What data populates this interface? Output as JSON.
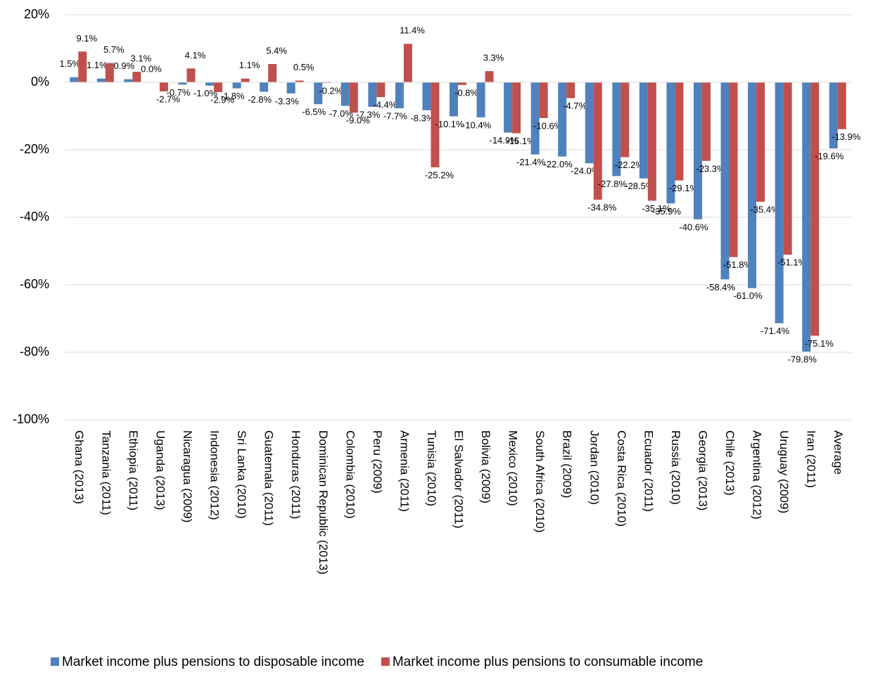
{
  "chart_data": {
    "type": "bar",
    "categories": [
      "Ghana (2013)",
      "Tanzania (2011)",
      "Ethiopia (2011)",
      "Uganda (2013)",
      "Nicaragua (2009)",
      "Indonesia (2012)",
      "Sri Lanka (2010)",
      "Guatemala (2011)",
      "Honduras (2011)",
      "Dominican Republic (2013)",
      "Colombia (2010)",
      "Peru (2009)",
      "Armenia (2011)",
      "Tunisia (2010)",
      "El Salvador (2011)",
      "Bolivia (2009)",
      "Mexico (2010)",
      "South Africa (2010)",
      "Brazil (2009)",
      "Jordan (2010)",
      "Costa Rica (2010)",
      "Ecuador (2011)",
      "Russia (2010)",
      "Georgia (2013)",
      "Chile (2013)",
      "Argentina (2012)",
      "Uruguay (2009)",
      "Iran (2011)",
      "Average"
    ],
    "series": [
      {
        "name": "Market income plus pensions to disposable income",
        "color": "#4f81bd",
        "values": [
          1.5,
          1.1,
          0.9,
          0.0,
          -0.7,
          -1.0,
          -1.8,
          -2.8,
          -3.3,
          -6.5,
          -7.0,
          -7.3,
          -7.7,
          -8.3,
          -10.1,
          -10.4,
          -14.9,
          -21.4,
          -22.0,
          -24.0,
          -27.8,
          -28.5,
          -35.9,
          -40.6,
          -58.4,
          -61.0,
          -71.4,
          -79.8,
          -19.6
        ],
        "value_labels": [
          "1.5%",
          "1.1%",
          "0.9%",
          "0.0%",
          "-0.7%",
          "-1.0%",
          "-1.8%",
          "-2.8%",
          "-3.3%",
          "-6.5%",
          "-7.0%",
          "-7.3%",
          "-7.7%",
          "-8.3%",
          "-10.1%",
          "-10.4%",
          "-14.9%",
          "-21.4%",
          "-22.0%",
          "-24.0%",
          "-27.8%",
          "-28.5%",
          "-35.9%",
          "-40.6%",
          "-58.4%",
          "-61.0%",
          "-71.4%",
          "-79.8%",
          "-19.6%"
        ]
      },
      {
        "name": "Market income plus pensions to consumable income",
        "color": "#c0504d",
        "values": [
          9.1,
          5.7,
          3.1,
          -2.7,
          4.1,
          -2.9,
          1.1,
          5.4,
          0.5,
          -0.2,
          -9.0,
          -4.4,
          11.4,
          -25.2,
          -0.8,
          3.3,
          -15.1,
          -10.6,
          -4.7,
          -34.8,
          -22.2,
          -35.1,
          -29.1,
          -23.3,
          -51.8,
          -35.4,
          -51.1,
          -75.1,
          -13.9
        ],
        "value_labels": [
          "9.1%",
          "5.7%",
          "3.1%",
          "-2.7%",
          "4.1%",
          "-2.9%",
          "1.1%",
          "5.4%",
          "0.5%",
          "-0.2%",
          "-9.0%",
          "-4.4%",
          "11.4%",
          "-25.2%",
          "-0.8%",
          "3.3%",
          "-15.1%",
          "-10.6%",
          "-4.7%",
          "-34.8%",
          "-22.2%",
          "-35.1%",
          "-29.1%",
          "-23.3%",
          "-51.8%",
          "-35.4%",
          "-51.1%",
          "-75.1%",
          "-13.9%"
        ]
      }
    ],
    "ylim": [
      -100,
      20
    ],
    "yticks": [
      {
        "value": -100,
        "label": "-100%"
      },
      {
        "value": -80,
        "label": "-80%"
      },
      {
        "value": -60,
        "label": "-60%"
      },
      {
        "value": -40,
        "label": "-40%"
      },
      {
        "value": -20,
        "label": "-20%"
      },
      {
        "value": 0,
        "label": "0%"
      },
      {
        "value": 20,
        "label": "20%"
      }
    ],
    "grid": true,
    "legend": "bottom"
  }
}
